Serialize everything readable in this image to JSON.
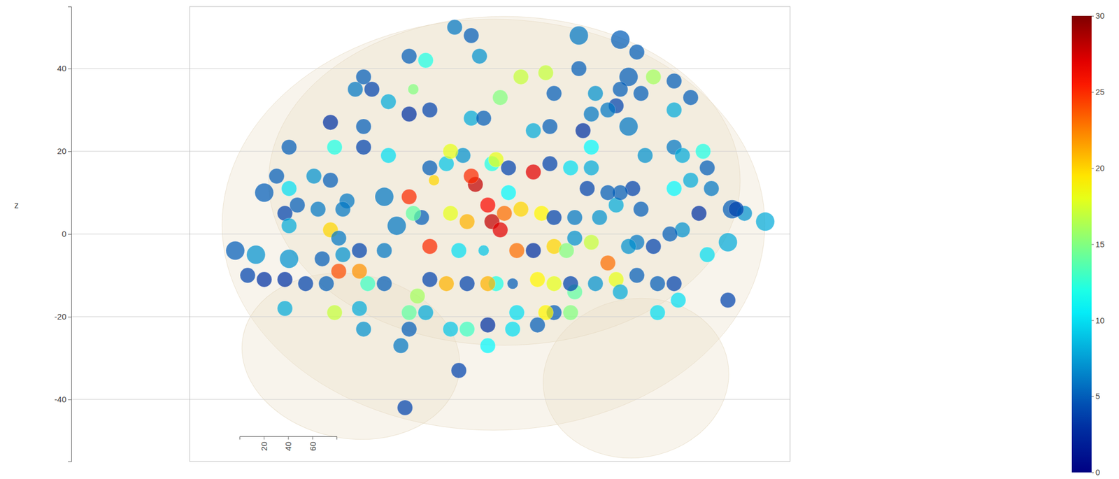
{
  "chart_data": {
    "type": "scatter3d",
    "z_axis_title": "z",
    "xlim": [
      -70,
      75
    ],
    "ylim": [
      0,
      80
    ],
    "yticks": [
      20,
      40,
      60
    ],
    "zlim": [
      -55,
      55
    ],
    "zticks": [
      -40,
      -20,
      0,
      20,
      40
    ],
    "grid": true,
    "x": [
      -6,
      -2,
      -17,
      -13,
      0,
      -28,
      -30,
      -26,
      -16,
      -22,
      -17,
      -12,
      -36,
      -28,
      -35,
      -28,
      -22,
      -46,
      -49,
      -52,
      -46,
      -40,
      -36,
      -47,
      -44,
      -39,
      -46,
      -32,
      -33,
      -23,
      -17,
      -14,
      -11,
      -12,
      -8,
      -4,
      -1,
      -2,
      3,
      4,
      7,
      13,
      7,
      2,
      3,
      5,
      6,
      10,
      15,
      18,
      -7,
      -3,
      -2,
      1,
      5,
      10,
      16,
      18,
      24,
      34,
      38,
      36,
      42,
      47,
      51,
      47,
      39,
      33,
      27,
      25,
      17,
      13,
      17,
      22,
      27,
      27,
      36,
      40,
      47,
      49,
      54,
      55,
      51,
      47,
      56,
      61,
      53,
      64,
      69,
      60,
      55,
      49,
      46,
      42,
      38,
      36,
      33,
      39,
      37,
      34,
      31,
      26,
      23,
      29,
      27,
      23,
      31,
      33,
      38,
      43,
      47,
      60,
      48,
      43,
      34,
      28,
      23,
      22,
      18,
      16,
      14,
      18,
      14,
      8,
      4,
      2,
      -3,
      -8,
      -12,
      -15,
      -17,
      -13,
      -17,
      -23,
      -27,
      -29,
      -34,
      -37,
      -42,
      -47,
      -52,
      -56,
      -59,
      -54,
      -46,
      -38,
      -33,
      -29,
      -23,
      -36,
      -34,
      -12,
      -5,
      1,
      9,
      13,
      18,
      21,
      -47,
      -35,
      -29,
      -28,
      -19,
      -7,
      -3,
      2,
      8,
      9,
      22,
      2,
      -5,
      -18,
      -20,
      -16,
      -7,
      24,
      28,
      31,
      34,
      62
    ],
    "z": [
      50,
      48,
      43,
      42,
      43,
      38,
      35,
      35,
      35,
      32,
      29,
      30,
      27,
      26,
      21,
      21,
      19,
      21,
      14,
      10,
      11,
      14,
      13,
      5,
      7,
      6,
      2,
      8,
      6,
      9,
      9,
      4,
      13,
      16,
      17,
      19,
      12,
      14,
      17,
      18,
      16,
      15,
      10,
      7,
      3,
      1,
      5,
      6,
      5,
      4,
      5,
      3,
      28,
      28,
      33,
      38,
      39,
      34,
      48,
      47,
      44,
      38,
      38,
      37,
      33,
      30,
      34,
      31,
      29,
      25,
      26,
      25,
      17,
      16,
      16,
      21,
      26,
      19,
      21,
      19,
      20,
      16,
      13,
      11,
      11,
      6,
      5,
      5,
      3,
      -2,
      -5,
      1,
      0,
      -3,
      -2,
      -3,
      7,
      6,
      11,
      10,
      10,
      11,
      4,
      4,
      -2,
      -1,
      -7,
      -11,
      -10,
      -12,
      -12,
      -16,
      -16,
      -19,
      -14,
      -12,
      -14,
      -12,
      -19,
      -19,
      -22,
      -12,
      -11,
      -12,
      -12,
      -12,
      -12,
      -12,
      -11,
      -15,
      -19,
      -19,
      -23,
      -12,
      -12,
      -9,
      -9,
      -12,
      -12,
      -11,
      -11,
      -10,
      -4,
      -5,
      -6,
      -6,
      -5,
      -4,
      -4,
      1,
      -1,
      -3,
      -4,
      -4,
      -4,
      -4,
      -3,
      -4,
      -18,
      -19,
      -18,
      -23,
      -27,
      -23,
      -23,
      -22,
      -23,
      -19,
      -19,
      -27,
      -33,
      -42,
      2,
      5,
      20,
      40,
      34,
      30,
      35,
      6
    ],
    "values": [
      6,
      5,
      5,
      12,
      7,
      5,
      6,
      4,
      15,
      8,
      3,
      4,
      3,
      5,
      12,
      4,
      10,
      5,
      5,
      5,
      10,
      7,
      5,
      4,
      5,
      6,
      8,
      6,
      6,
      6,
      25,
      5,
      20,
      5,
      9,
      7,
      28,
      25,
      12,
      18,
      4,
      27,
      11,
      26,
      28,
      27,
      23,
      20,
      19,
      4,
      18,
      21,
      8,
      5,
      15,
      17,
      17,
      5,
      6,
      5,
      5,
      5,
      16,
      5,
      5,
      8,
      5,
      4,
      6,
      3,
      5,
      8,
      4,
      10,
      8,
      11,
      6,
      7,
      6,
      8,
      12,
      5,
      8,
      11,
      6,
      5,
      3,
      7,
      8,
      8,
      10,
      7,
      5,
      4,
      6,
      7,
      8,
      5,
      4,
      5,
      5,
      4,
      6,
      7,
      17,
      7,
      23,
      18,
      5,
      5,
      4,
      4,
      10,
      10,
      8,
      7,
      14,
      4,
      5,
      19,
      5,
      18,
      19,
      5,
      12,
      21,
      4,
      21,
      4,
      16,
      14,
      8,
      5,
      5,
      13,
      22,
      24,
      5,
      4,
      3,
      3,
      4,
      5,
      7,
      7,
      5,
      7,
      4,
      6,
      20,
      6,
      25,
      10,
      9,
      23,
      3,
      20,
      15,
      8,
      17,
      8,
      7,
      6,
      9,
      13,
      3,
      10,
      10,
      15,
      11,
      4,
      4,
      6,
      14,
      18,
      5,
      7,
      6,
      5,
      4
    ],
    "sizes": [
      2,
      2,
      2,
      2,
      2,
      2,
      2,
      2,
      1,
      2,
      2,
      2,
      2,
      2,
      2,
      2,
      2,
      2,
      2,
      3,
      2,
      2,
      2,
      2,
      2,
      2,
      2,
      2,
      2,
      3,
      2,
      2,
      1,
      2,
      2,
      2,
      2,
      2,
      2,
      2,
      2,
      2,
      2,
      2,
      2,
      2,
      2,
      2,
      2,
      2,
      2,
      2,
      2,
      2,
      2,
      2,
      2,
      2,
      3,
      3,
      2,
      3,
      2,
      2,
      2,
      2,
      2,
      2,
      2,
      2,
      2,
      2,
      2,
      2,
      2,
      2,
      3,
      2,
      2,
      2,
      2,
      2,
      2,
      2,
      2,
      3,
      2,
      2,
      3,
      3,
      2,
      2,
      2,
      2,
      2,
      2,
      2,
      2,
      2,
      2,
      2,
      2,
      2,
      2,
      2,
      2,
      2,
      2,
      2,
      2,
      2,
      2,
      2,
      2,
      2,
      2,
      2,
      2,
      2,
      2,
      2,
      2,
      2,
      1,
      2,
      2,
      2,
      2,
      2,
      2,
      2,
      2,
      2,
      2,
      2,
      2,
      2,
      2,
      2,
      2,
      2,
      2,
      3,
      3,
      3,
      2,
      2,
      2,
      2,
      2,
      2,
      2,
      2,
      1,
      2,
      2,
      2,
      2,
      2,
      2,
      2,
      2,
      2,
      2,
      2,
      2,
      2,
      2,
      2,
      2,
      2,
      2,
      3,
      2,
      2,
      2,
      2,
      2,
      2,
      2
    ],
    "colorbar": {
      "range": [
        0,
        30
      ],
      "ticks": [
        0,
        5,
        10,
        15,
        20,
        25,
        30
      ]
    }
  }
}
